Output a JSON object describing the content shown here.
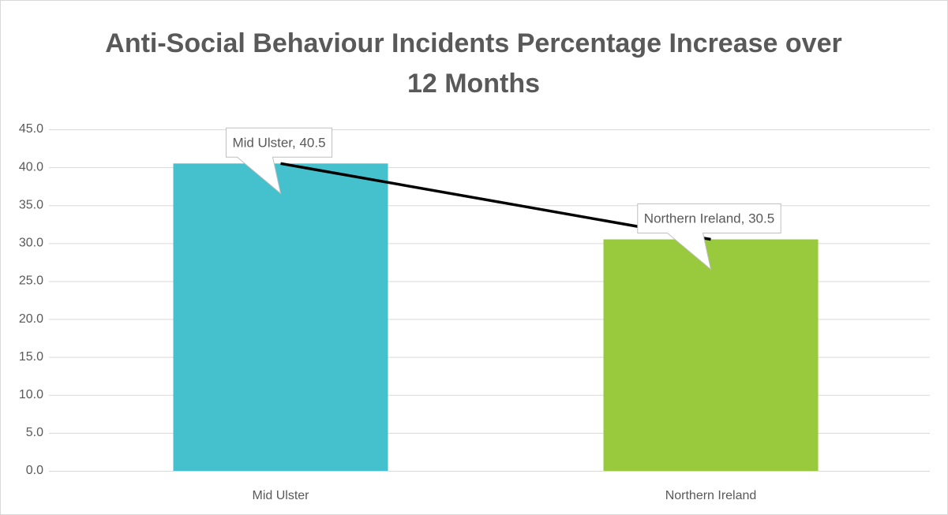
{
  "chart_data": {
    "type": "bar",
    "title": "Anti-Social Behaviour Incidents Percentage Increase over 12 Months",
    "categories": [
      "Mid Ulster",
      "Northern Ireland"
    ],
    "values": [
      40.5,
      30.5
    ],
    "value_labels": [
      "Mid Ulster, 40.5",
      "Northern Ireland, 30.5"
    ],
    "colors": [
      "#44c1cd",
      "#99c93c"
    ],
    "line_color": "#000000",
    "ylim": [
      0,
      45
    ],
    "yticks": [
      {
        "value": 0,
        "label": "0.0"
      },
      {
        "value": 5,
        "label": "5.0"
      },
      {
        "value": 10,
        "label": "10.0"
      },
      {
        "value": 15,
        "label": "15.0"
      },
      {
        "value": 20,
        "label": "20.0"
      },
      {
        "value": 25,
        "label": "25.0"
      },
      {
        "value": 30,
        "label": "30.0"
      },
      {
        "value": 35,
        "label": "35.0"
      },
      {
        "value": 40,
        "label": "40.0"
      },
      {
        "value": 45,
        "label": "45.0"
      }
    ],
    "grid": true
  }
}
